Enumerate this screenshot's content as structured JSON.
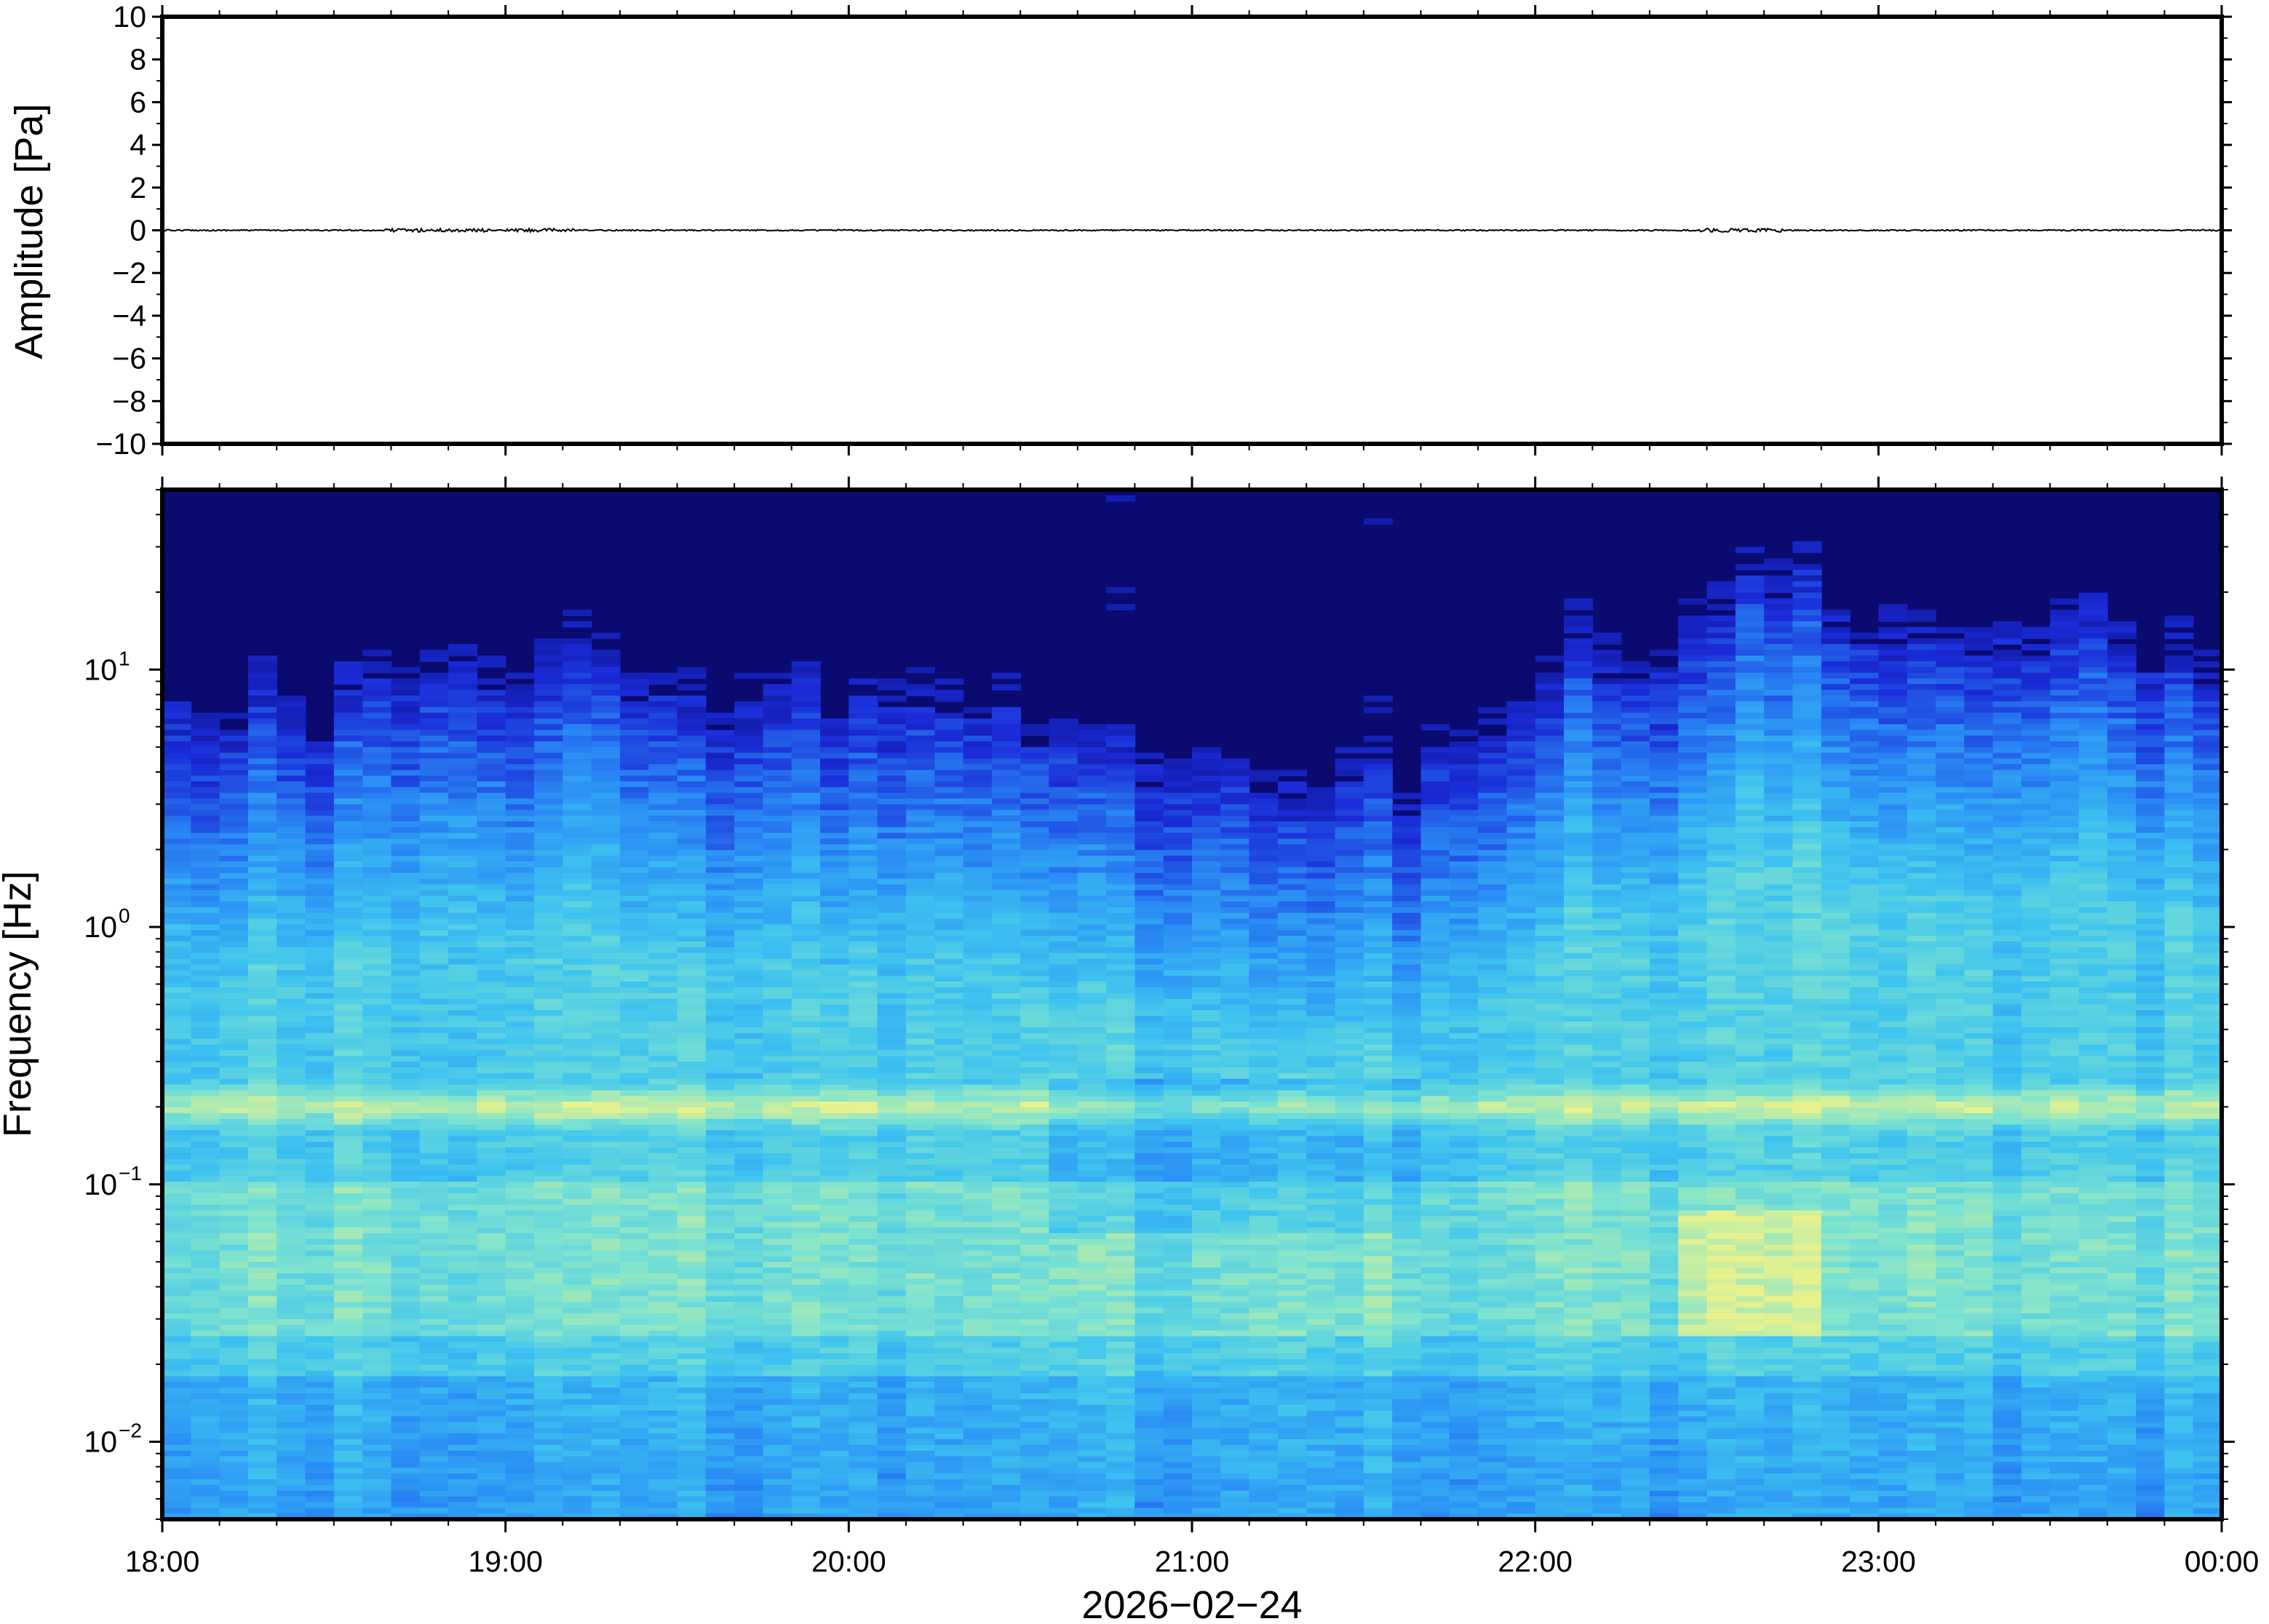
{
  "chart_data": [
    {
      "type": "line",
      "name": "waveform",
      "ylabel": "Amplitude [Pa]",
      "ylim": [
        -10,
        10
      ],
      "yticks": [
        10,
        8,
        6,
        4,
        2,
        0,
        -2,
        -4,
        -6,
        -8,
        -10
      ],
      "ytick_labels": [
        "10",
        "8",
        "6",
        "4",
        "2",
        "0",
        "−2",
        "−4",
        "−6",
        "−8",
        "−10"
      ],
      "xlim": [
        "18:00",
        "00:00"
      ],
      "series": [
        {
          "x": [
            "18:00",
            "19:00",
            "20:00",
            "21:00",
            "22:00",
            "22:35",
            "23:00",
            "00:00"
          ],
          "y": [
            0,
            0,
            0,
            0,
            0,
            0,
            0,
            0
          ]
        }
      ],
      "grid": false
    },
    {
      "type": "heatmap",
      "name": "spectrogram",
      "ylabel": "Frequency [Hz]",
      "yscale": "log",
      "ylim": [
        0.005,
        50
      ],
      "yticks": [
        0.01,
        0.1,
        1,
        10
      ],
      "ytick_labels": [
        {
          "base": "10",
          "exp": "−2"
        },
        {
          "base": "10",
          "exp": "−1"
        },
        {
          "base": "10",
          "exp": "0"
        },
        {
          "base": "10",
          "exp": "1"
        }
      ],
      "xticks": [
        "18:00",
        "19:00",
        "20:00",
        "21:00",
        "22:00",
        "23:00",
        "00:00"
      ],
      "xlabel": "2026−02−24",
      "colormap": [
        "#0a0a70",
        "#1a2bd8",
        "#2a8cf5",
        "#3dc3f0",
        "#7de3d0",
        "#e8f28c"
      ],
      "activity_by_time": {
        "hours_after_1800": [
          0,
          0.5,
          0.8,
          1.0,
          1.2,
          1.5,
          2.0,
          2.5,
          3.0,
          3.3,
          3.6,
          4.0,
          4.5,
          4.6,
          5.0,
          5.5,
          6.0
        ],
        "upper_edge_hz": [
          6,
          6,
          12,
          6,
          10,
          6,
          6,
          5,
          3,
          2.5,
          3,
          8,
          10,
          18,
          12,
          12,
          10
        ]
      },
      "grid": false
    }
  ]
}
